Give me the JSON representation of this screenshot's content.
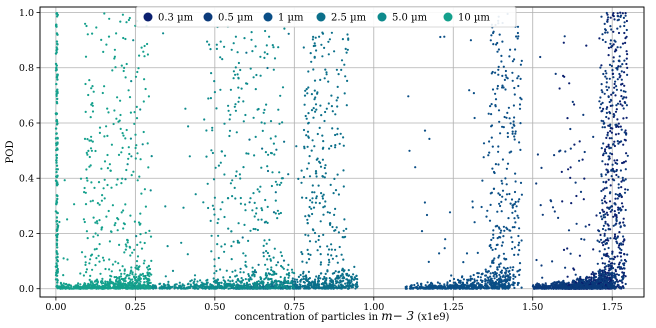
{
  "chart_data": {
    "type": "scatter",
    "xlabel_prefix": "concentration of particles in ",
    "xlabel_math": "m",
    "xlabel_exp": "− 3",
    "xlabel_suffix": " (x1e9)",
    "ylabel": "POD",
    "xlim": [
      -0.05,
      1.85
    ],
    "ylim": [
      -0.03,
      1.02
    ],
    "x_ticks": [
      0.0,
      0.25,
      0.5,
      0.75,
      1.0,
      1.25,
      1.5,
      1.75
    ],
    "x_tick_labels": [
      "0.00",
      "0.25",
      "0.50",
      "0.75",
      "1.00",
      "1.25",
      "1.50",
      "1.75"
    ],
    "y_ticks": [
      0.0,
      0.2,
      0.4,
      0.6,
      0.8,
      1.0
    ],
    "y_tick_labels": [
      "0.0",
      "0.2",
      "0.4",
      "0.6",
      "0.8",
      "1.0"
    ],
    "grid": true,
    "legend_position": "top-center",
    "series": [
      {
        "name": "0.3 µm",
        "color": "#0a1f6e",
        "x_baseline": [
          1.58,
          1.75
        ],
        "x_wall": [
          1.7,
          1.8
        ],
        "values_range": [
          0.0,
          1.0
        ]
      },
      {
        "name": "0.5 µm",
        "color": "#0b3a7a",
        "x_baseline": [
          1.5,
          1.76
        ],
        "x_wall": [
          1.68,
          1.8
        ],
        "values_range": [
          0.0,
          1.0
        ]
      },
      {
        "name": "1 µm",
        "color": "#0a4e86",
        "x_baseline": [
          1.1,
          1.43
        ],
        "x_wall": [
          1.32,
          1.47
        ],
        "values_range": [
          0.0,
          1.0
        ]
      },
      {
        "name": "2.5 µm",
        "color": "#0b6f8a",
        "x_baseline": [
          0.55,
          0.95
        ],
        "x_wall": [
          0.72,
          0.92
        ],
        "values_range": [
          0.0,
          0.95
        ]
      },
      {
        "name": "5.0 µm",
        "color": "#0d8a8c",
        "x_baseline": [
          0.2,
          0.75
        ],
        "x_wall": [
          0.38,
          0.72
        ],
        "values_range": [
          0.0,
          0.95
        ]
      },
      {
        "name": "10 µm",
        "color": "#14a08c",
        "x_baseline": [
          0.0,
          0.3
        ],
        "x_wall": [
          0.0,
          0.3
        ],
        "values_range": [
          0.0,
          1.0
        ]
      }
    ]
  }
}
